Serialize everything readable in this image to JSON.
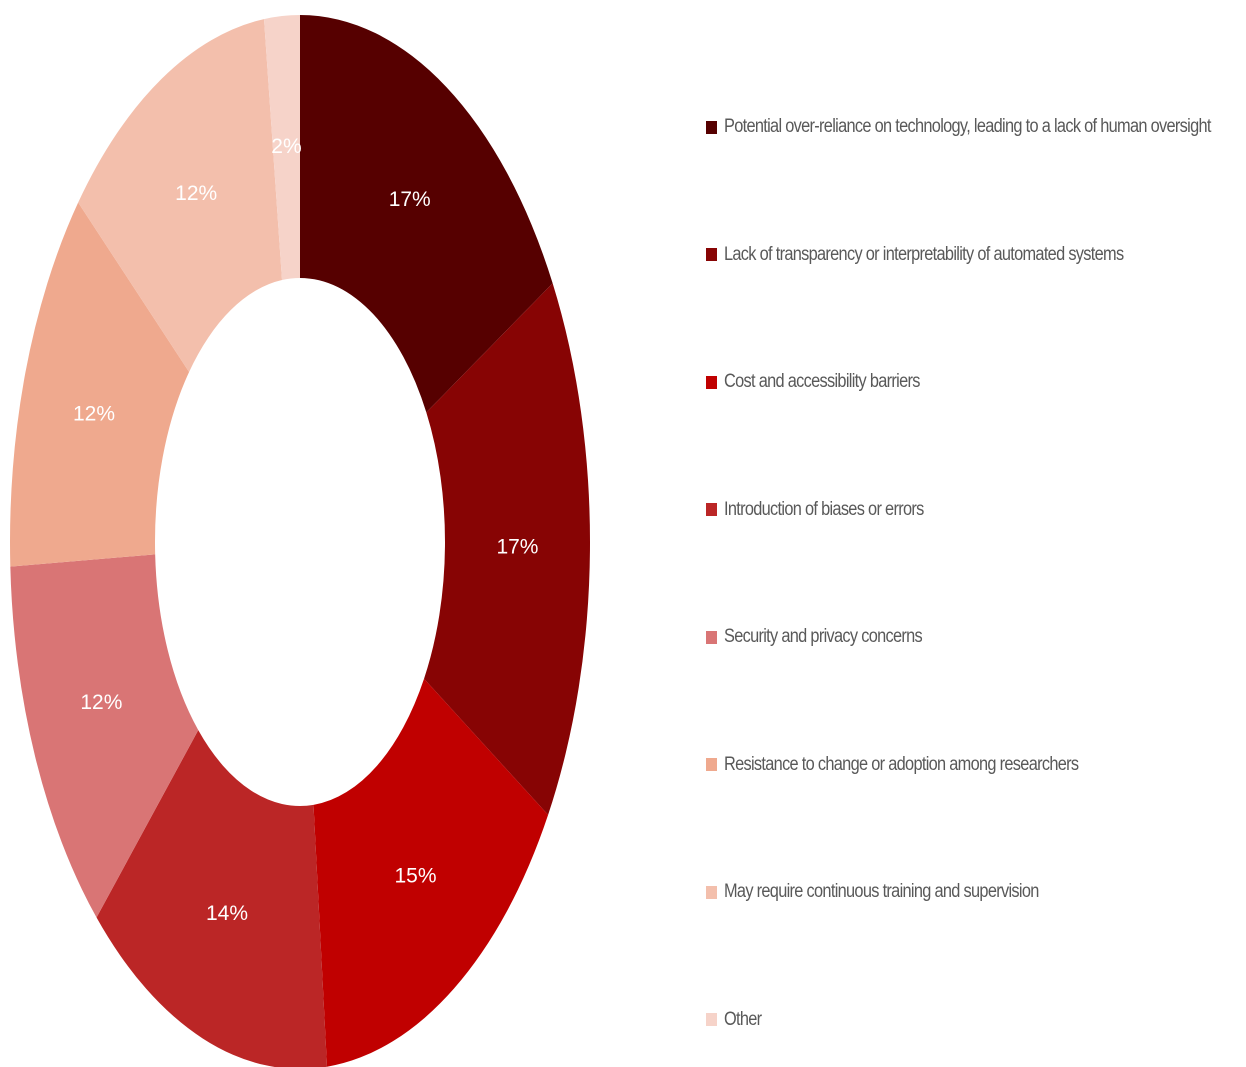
{
  "chart_data": {
    "type": "pie",
    "subtype": "donut",
    "slices": [
      {
        "label": "Potential over-reliance on technology, leading to a lack of human oversight",
        "value": 17,
        "display": "17%",
        "color": "#560000"
      },
      {
        "label": "Lack of transparency or interpretability of automated systems",
        "value": 17,
        "display": "17%",
        "color": "#870404"
      },
      {
        "label": "Cost and accessibility barriers",
        "value": 15,
        "display": "15%",
        "color": "#c00000"
      },
      {
        "label": "Introduction of biases or errors",
        "value": 14,
        "display": "14%",
        "color": "#bb2626"
      },
      {
        "label": "Security and privacy concerns",
        "value": 12,
        "display": "12%",
        "color": "#d97575"
      },
      {
        "label": "Resistance to change or adoption among researchers",
        "value": 12,
        "display": "12%",
        "color": "#efa98e"
      },
      {
        "label": "May require continuous training and supervision",
        "value": 12,
        "display": "12%",
        "color": "#f3bfac"
      },
      {
        "label": "Other",
        "value": 2,
        "display": "2%",
        "color": "#f6d3c9"
      }
    ],
    "legend_position": "right"
  }
}
